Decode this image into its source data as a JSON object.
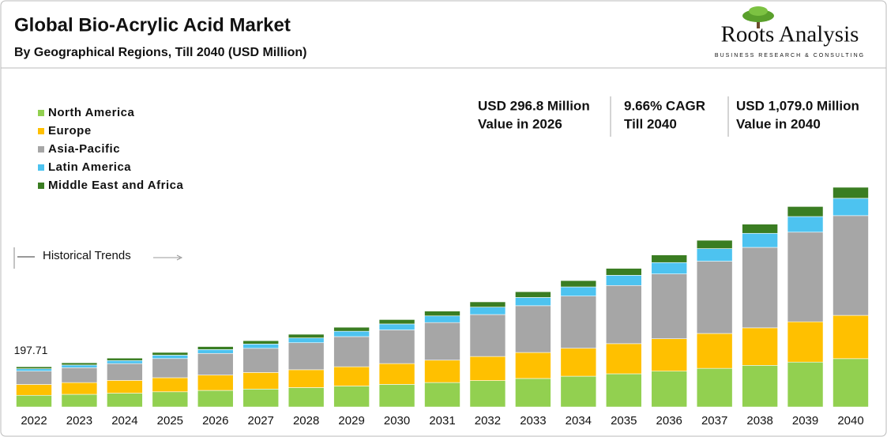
{
  "chart_data": {
    "type": "stacked_bar",
    "title": "Global Bio-Acrylic Acid Market",
    "subtitle": "By Geographical Regions, Till 2040 (USD Million)",
    "categories": [
      "2022",
      "2023",
      "2024",
      "2025",
      "2026",
      "2027",
      "2028",
      "2029",
      "2030",
      "2031",
      "2032",
      "2033",
      "2034",
      "2035",
      "2036",
      "2037",
      "2038",
      "2039",
      "2040"
    ],
    "series": [
      {
        "name": "North America",
        "color": "#92d050",
        "values": [
          57.3,
          62.1,
          67.7,
          74.6,
          81.4,
          88.1,
          95.2,
          102.9,
          111.1,
          120.1,
          129.6,
          140.0,
          151.1,
          163.0,
          175.9,
          189.7,
          204.5,
          220.5,
          237.4
        ]
      },
      {
        "name": "Europe",
        "color": "#ffc000",
        "values": [
          53.4,
          57.7,
          62.9,
          69.1,
          75.3,
          81.3,
          87.7,
          94.6,
          102.0,
          109.9,
          118.4,
          127.6,
          137.4,
          148.0,
          159.2,
          171.3,
          184.2,
          198.0,
          212.6
        ]
      },
      {
        "name": "Asia-Pacific",
        "color": "#a6a6a6",
        "values": [
          65.2,
          73.1,
          82.5,
          94.0,
          106.2,
          118.6,
          132.6,
          148.1,
          165.3,
          184.6,
          206.0,
          229.8,
          256.2,
          285.7,
          318.4,
          354.8,
          395.3,
          440.2,
          489.9
        ]
      },
      {
        "name": "Latin America",
        "color": "#4dc3f0",
        "values": [
          11.9,
          13.3,
          14.9,
          16.9,
          19.1,
          21.3,
          23.7,
          26.4,
          29.4,
          32.7,
          36.5,
          40.5,
          45.1,
          50.2,
          55.9,
          62.1,
          69.0,
          76.7,
          85.2
        ]
      },
      {
        "name": "Middle East and Africa",
        "color": "#3a7d22",
        "values": [
          9.9,
          10.9,
          12.0,
          13.4,
          14.8,
          16.3,
          17.9,
          19.6,
          21.5,
          23.5,
          25.8,
          28.3,
          31.0,
          34.0,
          37.3,
          40.9,
          44.9,
          49.2,
          54.0
        ]
      }
    ],
    "total_labels": [
      197.71,
      null,
      null,
      null,
      null,
      null,
      null,
      null,
      null,
      null,
      null,
      null,
      null,
      null,
      null,
      null,
      null,
      null,
      null
    ],
    "highlights": [
      {
        "line1": "USD 296.8 Million",
        "line2": "Value in 2026"
      },
      {
        "line1": "9.66% CAGR",
        "line2": "Till 2040"
      },
      {
        "line1": "USD 1,079.0 Million",
        "line2": "Value in 2040"
      }
    ],
    "annotation": "Historical Trends"
  },
  "logo": {
    "name": "Roots Analysis",
    "tagline": "BUSINESS RESEARCH & CONSULTING"
  }
}
